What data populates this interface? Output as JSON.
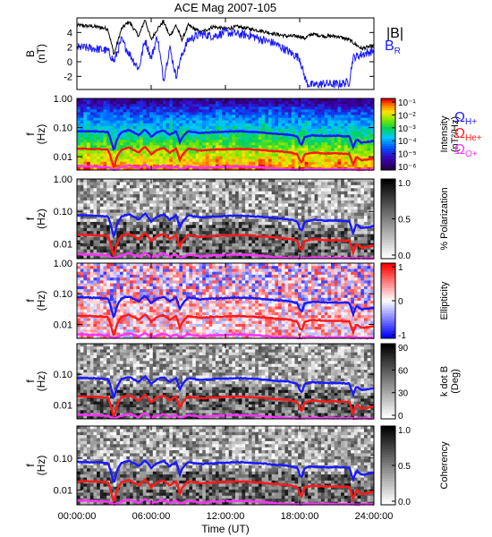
{
  "chart_data": {
    "title": "ACE Mag 2007-105",
    "time_axis": {
      "label": "Time (UT)",
      "ticks": [
        "00:00:00",
        "06:00:00",
        "12:00:00",
        "18:00:00",
        "24:00:00"
      ],
      "range_hours": [
        0,
        24
      ]
    },
    "panels": [
      {
        "id": "bfield",
        "type": "line",
        "ylabel": "B",
        "yunit": "(nT)",
        "ylim": [
          -3.8,
          6
        ],
        "yticks": [
          -2,
          0,
          2,
          4
        ],
        "series": [
          {
            "name": "|B|",
            "color": "#000000",
            "t": [
              0,
              1.5,
              2.5,
              3.0,
              3.6,
              4.2,
              5.0,
              5.5,
              6.0,
              6.5,
              7.0,
              7.5,
              8.0,
              8.5,
              9.0,
              10,
              11,
              12,
              13,
              14,
              15,
              16,
              17,
              18,
              18.4,
              19,
              20,
              21,
              22,
              23,
              24
            ],
            "v": [
              5.0,
              4.8,
              4.5,
              1.0,
              4.5,
              5.5,
              3.5,
              5.8,
              3.0,
              4.5,
              5.5,
              3.5,
              5.0,
              3.0,
              5.0,
              4.0,
              4.8,
              4.5,
              4.8,
              4.5,
              4.2,
              3.8,
              3.5,
              3.5,
              3.2,
              3.8,
              3.5,
              3.5,
              3.0,
              1.8,
              2.2
            ]
          },
          {
            "name": "B",
            "subscript": "R",
            "color": "#1a1aff",
            "t": [
              0,
              1.5,
              2.5,
              3.0,
              3.6,
              4.2,
              5.0,
              5.5,
              6.0,
              6.5,
              7.0,
              7.5,
              8.0,
              8.5,
              9.0,
              10,
              11,
              12,
              13,
              14,
              15,
              16,
              17,
              18,
              18.3,
              18.6,
              19,
              20,
              21,
              22,
              22.3,
              23,
              24
            ],
            "v": [
              2.0,
              1.8,
              1.5,
              0.0,
              3.0,
              1.2,
              -1.0,
              3.0,
              0.5,
              3.5,
              -2.5,
              2.0,
              -2.0,
              1.0,
              3.0,
              3.8,
              3.5,
              4.0,
              3.8,
              3.6,
              3.0,
              2.5,
              1.5,
              0.5,
              -1.5,
              -3.0,
              -3.2,
              -3.0,
              -3.1,
              -2.8,
              0.5,
              1.0,
              1.5
            ]
          }
        ]
      },
      {
        "id": "intensity",
        "type": "heatmap",
        "ylabel": "f",
        "yunit": "(Hz)",
        "yscale": "log",
        "ylim": [
          0.0035,
          1.0
        ],
        "yticks": [
          "1.00",
          "0.10",
          "0.01"
        ],
        "colorbar": {
          "label": "Intensity",
          "unit": "(nT²/Hz)",
          "ticks": [
            "10⁻¹",
            "10⁻²",
            "10⁻³",
            "10⁻⁴",
            "10⁻⁵",
            "10⁻⁶"
          ],
          "palette": "rainbow"
        }
      },
      {
        "id": "polarization",
        "type": "heatmap",
        "ylabel": "f",
        "yunit": "(Hz)",
        "yscale": "log",
        "ylim": [
          0.0035,
          1.0
        ],
        "yticks": [
          "1.00",
          "0.10",
          "0.01"
        ],
        "colorbar": {
          "label": "% Polarization",
          "ticks": [
            "1.0",
            "0.5",
            "0.0"
          ],
          "palette": "gray"
        }
      },
      {
        "id": "ellipticity",
        "type": "heatmap",
        "ylabel": "f",
        "yunit": "(Hz)",
        "yscale": "log",
        "ylim": [
          0.0035,
          1.0
        ],
        "yticks": [
          "1.00",
          "0.10",
          "0.01"
        ],
        "colorbar": {
          "label": "Ellipticity",
          "ticks": [
            "1",
            "0",
            "-1"
          ],
          "palette": "bluewhitered"
        }
      },
      {
        "id": "kdotb",
        "type": "heatmap",
        "ylabel": "f",
        "yunit": "(Hz)",
        "yscale": "log",
        "ylim": [
          0.0035,
          1.0
        ],
        "yticks": [
          "0.10",
          "0.01"
        ],
        "colorbar": {
          "label": "k dot B",
          "unit": "(Deg)",
          "ticks": [
            "90",
            "60",
            "30",
            "0"
          ],
          "palette": "gray"
        }
      },
      {
        "id": "coherency",
        "type": "heatmap",
        "ylabel": "f",
        "yunit": "(Hz)",
        "yscale": "log",
        "ylim": [
          0.0035,
          1.0
        ],
        "yticks": [
          "0.10",
          "0.01"
        ],
        "colorbar": {
          "label": "Coherency",
          "ticks": [
            "1.0",
            "0.5",
            "0.0"
          ],
          "palette": "gray"
        }
      }
    ],
    "gyrofrequency_lines": {
      "legend": [
        {
          "label": "Ω",
          "subscript": "H+",
          "color": "#1a1aff"
        },
        {
          "label": "Ω",
          "subscript": "He+",
          "color": "#ff1a1a"
        },
        {
          "label": "Ω",
          "subscript": "O+",
          "color": "#ff33ff"
        }
      ],
      "t": [
        0,
        1.5,
        2.5,
        2.8,
        3.0,
        3.2,
        3.6,
        4.2,
        5.0,
        5.5,
        6.0,
        6.5,
        7.0,
        7.5,
        8.0,
        8.3,
        8.5,
        9.0,
        10,
        11,
        12,
        13,
        14,
        15,
        16,
        17,
        17.8,
        18.0,
        18.2,
        18.4,
        19,
        20,
        21,
        22,
        22.3,
        22.6,
        23,
        24
      ],
      "H_plus_Hz": [
        0.076,
        0.074,
        0.07,
        0.03,
        0.015,
        0.035,
        0.07,
        0.082,
        0.055,
        0.085,
        0.048,
        0.07,
        0.08,
        0.055,
        0.075,
        0.03,
        0.045,
        0.075,
        0.065,
        0.07,
        0.072,
        0.075,
        0.072,
        0.068,
        0.062,
        0.058,
        0.05,
        0.03,
        0.025,
        0.048,
        0.055,
        0.052,
        0.052,
        0.05,
        0.02,
        0.04,
        0.03,
        0.035
      ],
      "He_plus_Hz": [
        0.019,
        0.0185,
        0.0175,
        0.0075,
        0.0038,
        0.0088,
        0.0175,
        0.0205,
        0.0138,
        0.0213,
        0.012,
        0.0175,
        0.02,
        0.0138,
        0.0188,
        0.0075,
        0.0113,
        0.0188,
        0.0163,
        0.0175,
        0.018,
        0.0188,
        0.018,
        0.017,
        0.0155,
        0.0145,
        0.0125,
        0.0075,
        0.0063,
        0.012,
        0.0138,
        0.013,
        0.013,
        0.0125,
        0.005,
        0.01,
        0.0075,
        0.0088
      ],
      "O_plus_Hz": [
        0.0048,
        0.0046,
        0.0044,
        0.0038,
        0.0036,
        0.0038,
        0.0044,
        0.0051,
        0.004,
        0.0053,
        0.0038,
        0.0044,
        0.005,
        0.004,
        0.0047,
        0.0037,
        0.0038,
        0.0047,
        0.0041,
        0.0044,
        0.0045,
        0.0047,
        0.0045,
        0.0043,
        0.0039,
        0.0037,
        0.0036,
        0.0036,
        0.0036,
        0.0037,
        0.0038,
        0.0037,
        0.0037,
        0.0037,
        0.0036,
        0.0036,
        0.0036,
        0.0036
      ]
    }
  }
}
